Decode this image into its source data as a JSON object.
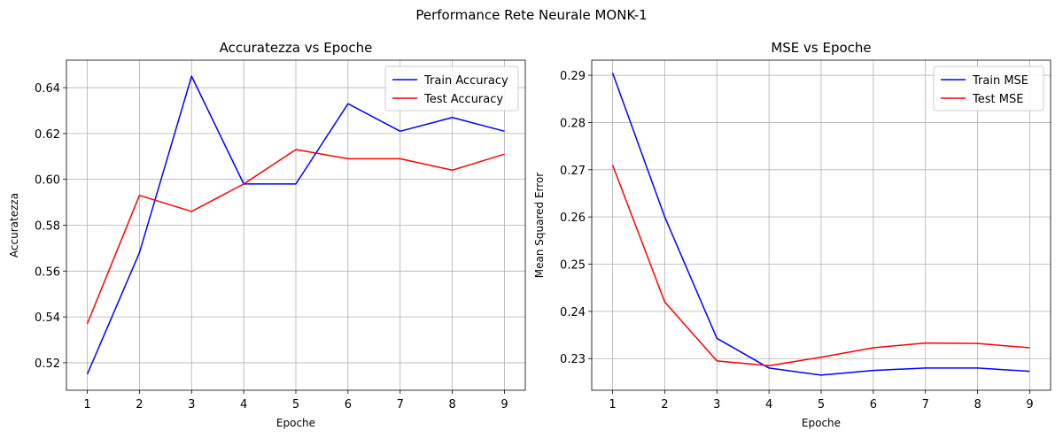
{
  "figure": {
    "suptitle": "Performance Rete Neurale MONK-1"
  },
  "chart_data": [
    {
      "type": "line",
      "title": "Accuratezza vs Epoche",
      "xlabel": "Epoche",
      "ylabel": "Accuratezza",
      "x": [
        1,
        2,
        3,
        4,
        5,
        6,
        7,
        8,
        9
      ],
      "xticks": [
        1,
        2,
        3,
        4,
        5,
        6,
        7,
        8,
        9
      ],
      "xlim": [
        0.6,
        9.4
      ],
      "ylim": [
        0.508,
        0.652
      ],
      "yticks": [
        0.52,
        0.54,
        0.56,
        0.58,
        0.6,
        0.62,
        0.64
      ],
      "ytick_labels": [
        "0.52",
        "0.54",
        "0.56",
        "0.58",
        "0.60",
        "0.62",
        "0.64"
      ],
      "grid": true,
      "legend": "top-right",
      "series": [
        {
          "name": "Train Accuracy",
          "color": "#0000ff",
          "values": [
            0.515,
            0.568,
            0.645,
            0.598,
            0.598,
            0.633,
            0.621,
            0.627,
            0.621
          ]
        },
        {
          "name": "Test Accuracy",
          "color": "#ff0000",
          "values": [
            0.537,
            0.593,
            0.586,
            0.598,
            0.613,
            0.609,
            0.609,
            0.604,
            0.611
          ]
        }
      ]
    },
    {
      "type": "line",
      "title": "MSE vs Epoche",
      "xlabel": "Epoche",
      "ylabel": "Mean Squared Error",
      "x": [
        1,
        2,
        3,
        4,
        5,
        6,
        7,
        8,
        9
      ],
      "xticks": [
        1,
        2,
        3,
        4,
        5,
        6,
        7,
        8,
        9
      ],
      "xlim": [
        0.6,
        9.4
      ],
      "ylim": [
        0.2233,
        0.2932
      ],
      "yticks": [
        0.23,
        0.24,
        0.25,
        0.26,
        0.27,
        0.28,
        0.29
      ],
      "ytick_labels": [
        "0.23",
        "0.24",
        "0.25",
        "0.26",
        "0.27",
        "0.28",
        "0.29"
      ],
      "grid": true,
      "legend": "top-right",
      "series": [
        {
          "name": "Train MSE",
          "color": "#0000ff",
          "values": [
            0.2905,
            0.26,
            0.2343,
            0.228,
            0.2265,
            0.2275,
            0.228,
            0.228,
            0.2273
          ]
        },
        {
          "name": "Test MSE",
          "color": "#ff0000",
          "values": [
            0.271,
            0.242,
            0.2295,
            0.2285,
            0.2303,
            0.2323,
            0.2333,
            0.2332,
            0.2323
          ]
        }
      ]
    }
  ]
}
